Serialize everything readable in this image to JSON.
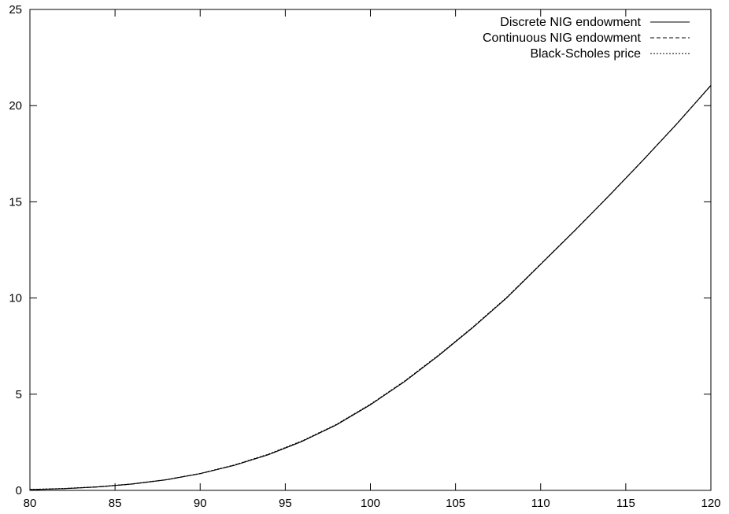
{
  "chart_data": {
    "type": "line",
    "title": "",
    "xlabel": "",
    "ylabel": "",
    "xlim": [
      80,
      120
    ],
    "ylim": [
      0,
      25
    ],
    "x_ticks": [
      80,
      85,
      90,
      95,
      100,
      105,
      110,
      115,
      120
    ],
    "y_ticks": [
      0,
      5,
      10,
      15,
      20,
      25
    ],
    "grid": false,
    "legend_position": "top-right",
    "x": [
      80,
      82,
      84,
      86,
      88,
      90,
      92,
      94,
      96,
      98,
      100,
      102,
      104,
      106,
      108,
      110,
      112,
      114,
      116,
      118,
      120
    ],
    "series": [
      {
        "name": "Discrete NIG endowment",
        "dash": "solid",
        "color": "#000000",
        "values": [
          0.04,
          0.09,
          0.18,
          0.33,
          0.55,
          0.87,
          1.3,
          1.85,
          2.55,
          3.4,
          4.45,
          5.65,
          7.0,
          8.45,
          10.0,
          11.75,
          13.5,
          15.3,
          17.15,
          19.05,
          21.05
        ]
      },
      {
        "name": "Continuous NIG endowment",
        "dash": "dashed",
        "color": "#000000",
        "values": [
          0.04,
          0.09,
          0.18,
          0.33,
          0.55,
          0.87,
          1.31,
          1.86,
          2.56,
          3.41,
          4.46,
          5.66,
          7.01,
          8.46,
          10.01,
          11.76,
          13.5,
          15.3,
          17.15,
          19.05,
          21.05
        ]
      },
      {
        "name": "Black-Scholes price",
        "dash": "dotted",
        "color": "#000000",
        "values": [
          0.05,
          0.1,
          0.19,
          0.34,
          0.56,
          0.88,
          1.32,
          1.88,
          2.58,
          3.43,
          4.48,
          5.68,
          7.03,
          8.48,
          10.03,
          11.77,
          13.51,
          15.31,
          17.16,
          19.06,
          21.06
        ]
      }
    ]
  }
}
